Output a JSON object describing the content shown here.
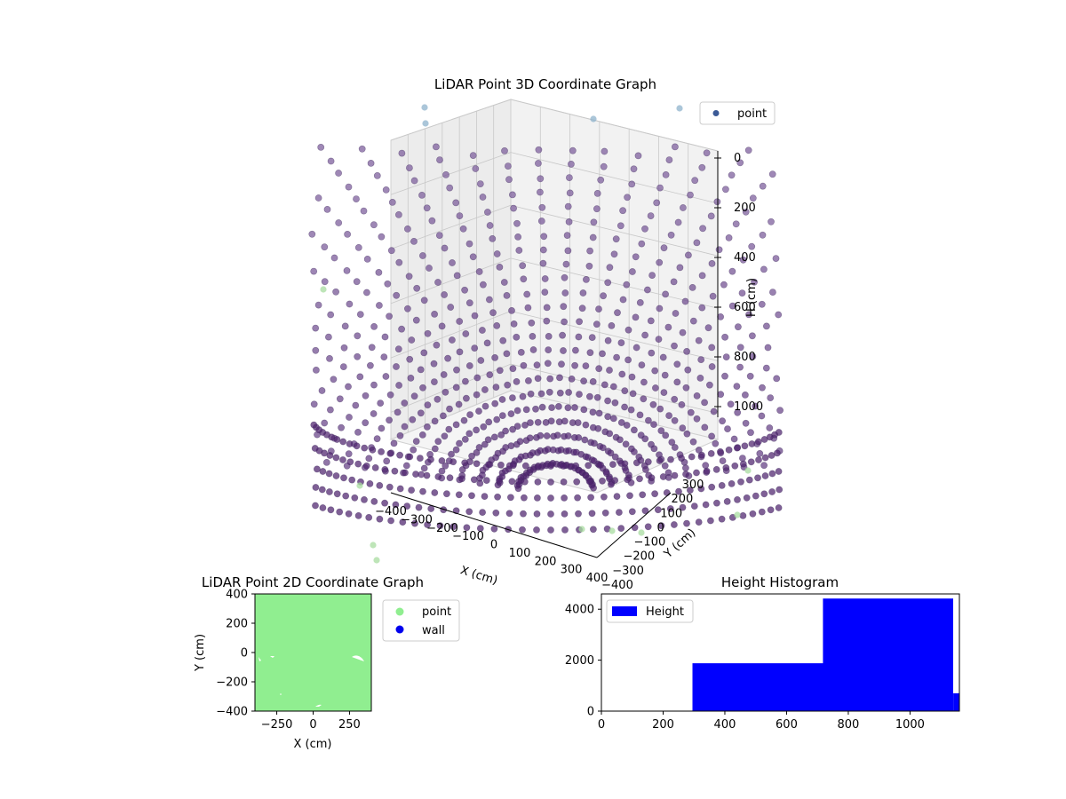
{
  "chart_data": [
    {
      "id": "scatter3d",
      "type": "scatter",
      "title": "LiDAR Point 3D Coordinate Graph",
      "xlabel": "X (cm)",
      "ylabel": "Y (cm)",
      "zlabel": "H (cm)",
      "x_ticks": [
        "−400",
        "−300",
        "−200",
        "−100",
        "0",
        "100",
        "200",
        "300",
        "400"
      ],
      "y_ticks": [
        "−400",
        "−300",
        "−200",
        "−100",
        "0",
        "100",
        "200",
        "300"
      ],
      "z_ticks": [
        "0",
        "200",
        "400",
        "600",
        "800",
        "1000"
      ],
      "xlim": [
        -400,
        400
      ],
      "ylim": [
        -400,
        400
      ],
      "zlim": [
        0,
        1100
      ],
      "z_inverted": true,
      "legend": {
        "entries": [
          {
            "name": "point",
            "color": "#3b5a96"
          }
        ],
        "loc": "upper right"
      },
      "point_color_low": "#4b1e6b",
      "point_color_high": "#7a5a9a",
      "outlier_color_blue": "#8fb3cc",
      "outlier_color_green": "#a8dca0",
      "grid": true
    },
    {
      "id": "scatter2d",
      "type": "scatter",
      "title": "LiDAR Point 2D Coordinate Graph",
      "xlabel": "X (cm)",
      "ylabel": "Y (cm)",
      "x_ticks": [
        {
          "v": -250,
          "label": "−250"
        },
        {
          "v": 0,
          "label": "0"
        },
        {
          "v": 250,
          "label": "250"
        }
      ],
      "y_ticks": [
        {
          "v": 400,
          "label": "400"
        },
        {
          "v": 200,
          "label": "200"
        },
        {
          "v": 0,
          "label": "0"
        },
        {
          "v": -200,
          "label": "−200"
        },
        {
          "v": -400,
          "label": "−400"
        }
      ],
      "xlim": [
        -400,
        400
      ],
      "ylim": [
        -400,
        400
      ],
      "legend": {
        "entries": [
          {
            "name": "point",
            "color": "#90ee90"
          },
          {
            "name": "wall",
            "color": "#0000ee"
          }
        ],
        "loc": "outside right"
      },
      "fill_color": "#90ee90"
    },
    {
      "id": "hist",
      "type": "bar",
      "title": "Height Histogram",
      "xlim": [
        0,
        1160
      ],
      "ylim": [
        0,
        4600
      ],
      "x_ticks": [
        {
          "v": 0,
          "label": "0"
        },
        {
          "v": 200,
          "label": "200"
        },
        {
          "v": 400,
          "label": "400"
        },
        {
          "v": 600,
          "label": "600"
        },
        {
          "v": 800,
          "label": "800"
        },
        {
          "v": 1000,
          "label": "1000"
        }
      ],
      "y_ticks": [
        {
          "v": 0,
          "label": "0"
        },
        {
          "v": 2000,
          "label": "2000"
        },
        {
          "v": 4000,
          "label": "4000"
        }
      ],
      "bins": [
        {
          "x0": 295,
          "x1": 718,
          "value": 1880
        },
        {
          "x0": 718,
          "x1": 1140,
          "value": 4420
        },
        {
          "x0": 1140,
          "x1": 1160,
          "value": 700
        }
      ],
      "color": "#0000ff",
      "legend": {
        "entries": [
          {
            "name": "Height",
            "color": "#0000ff"
          }
        ],
        "loc": "upper left"
      }
    }
  ]
}
